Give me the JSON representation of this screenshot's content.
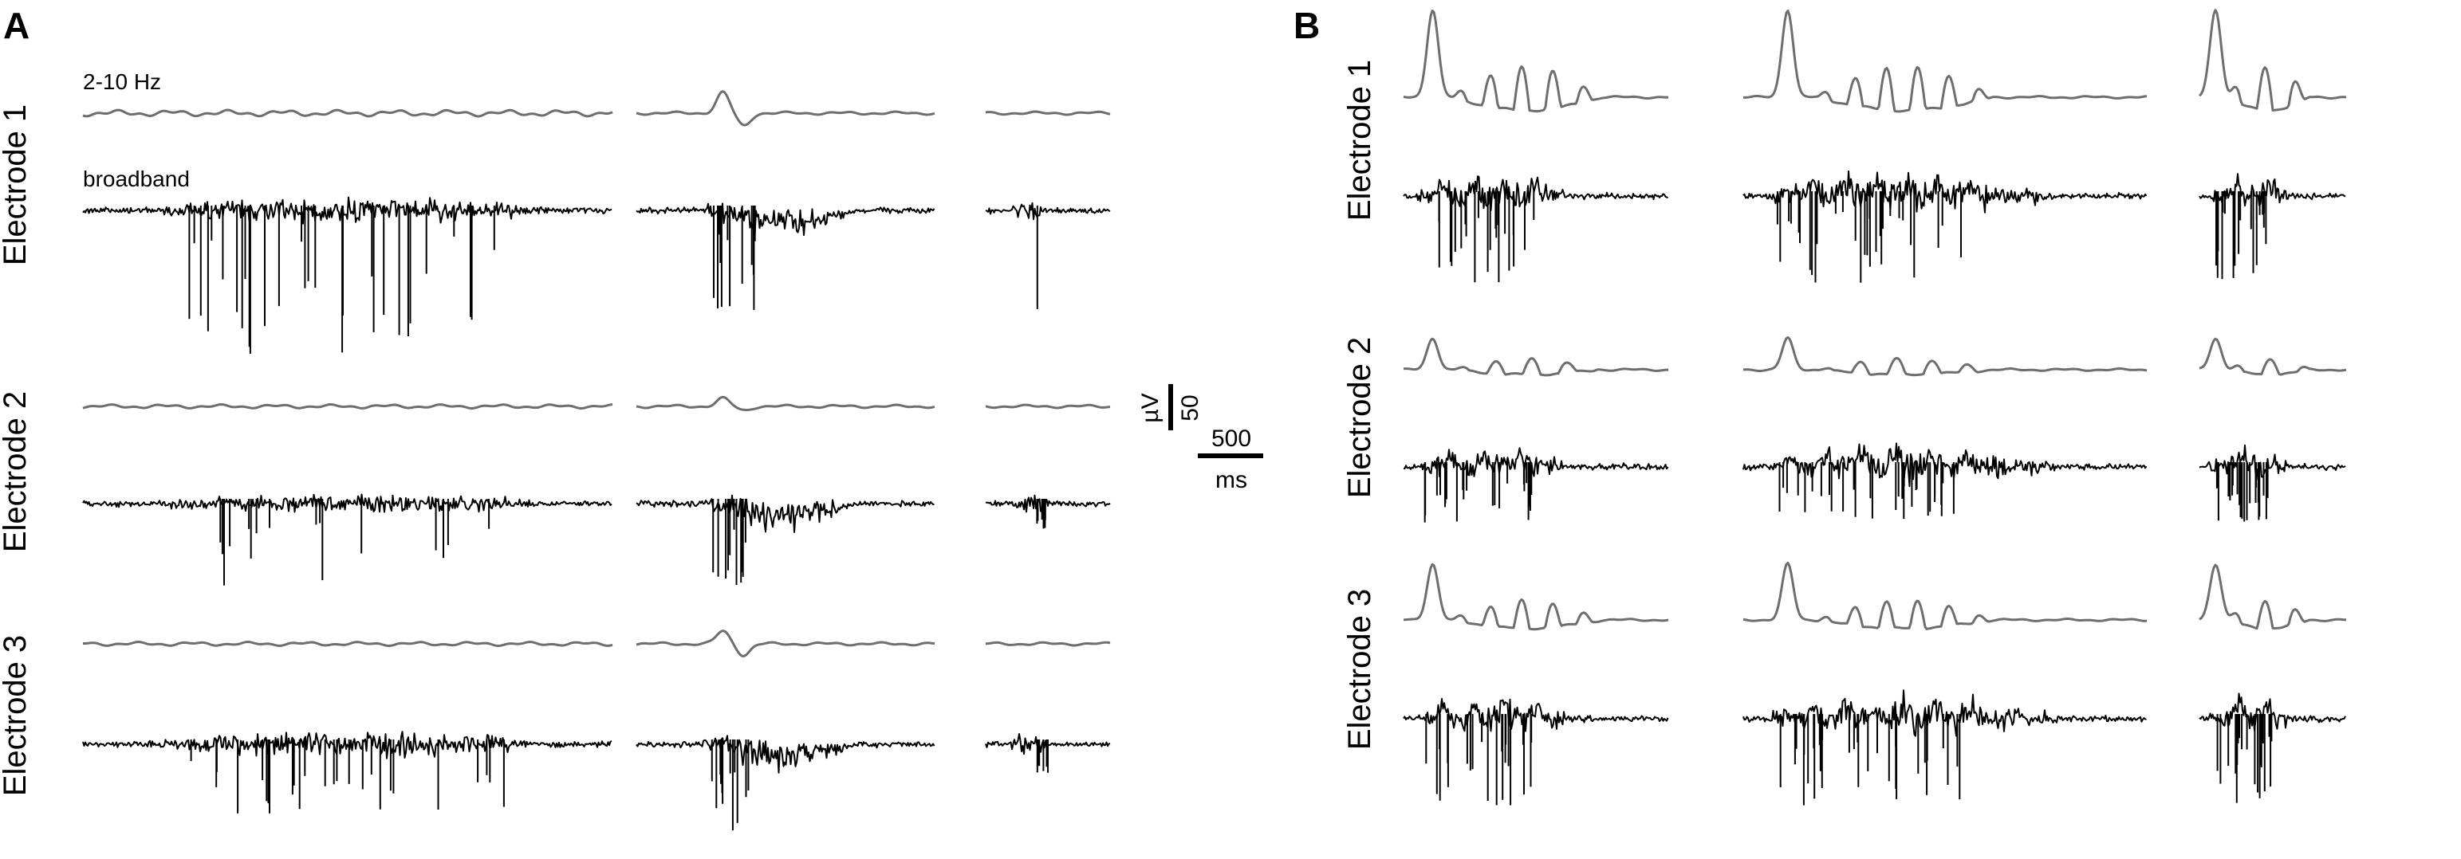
{
  "panels": [
    {
      "letter": "A",
      "electrodes": [
        "Electrode 1",
        "Electrode 2",
        "Electrode 3"
      ],
      "filtered_label": "2-10 Hz",
      "broadband_label": "broadband"
    },
    {
      "letter": "B",
      "electrodes": [
        "Electrode 1",
        "Electrode 2",
        "Electrode 3"
      ]
    }
  ],
  "scale_bar": {
    "voltage_value": "50",
    "voltage_unit": "µV",
    "time_value": "500",
    "time_unit": "ms"
  },
  "colors": {
    "filtered_trace": "#6e6e6e",
    "broadband_trace": "#000000"
  }
}
